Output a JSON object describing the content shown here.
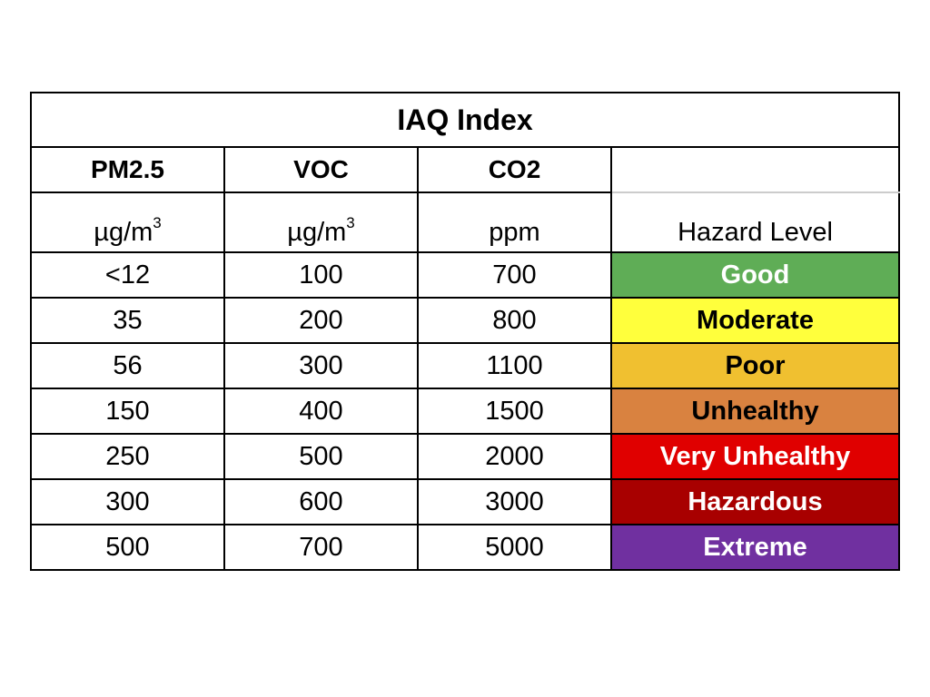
{
  "table": {
    "title": "IAQ Index",
    "columns": [
      {
        "name": "PM2.5",
        "unit": "µg/m",
        "unit_sup": "3"
      },
      {
        "name": "VOC",
        "unit": "µg/m",
        "unit_sup": "3"
      },
      {
        "name": "CO2",
        "unit": "ppm"
      },
      {
        "unit": "Hazard Level"
      }
    ],
    "rows": [
      {
        "cells": [
          "<12",
          100,
          700
        ],
        "level": {
          "label": "Good",
          "fill": "#5fad56",
          "text_color": "#ffffff"
        }
      },
      {
        "cells": [
          35,
          200,
          800
        ],
        "level": {
          "label": "Moderate",
          "fill": "#ffff3c",
          "text_color": "#000000"
        }
      },
      {
        "cells": [
          56,
          300,
          1100
        ],
        "level": {
          "label": "Poor",
          "fill": "#f0c030",
          "text_color": "#000000"
        }
      },
      {
        "cells": [
          150,
          400,
          1500
        ],
        "level": {
          "label": "Unhealthy",
          "fill": "#d98240",
          "text_color": "#000000"
        }
      },
      {
        "cells": [
          250,
          500,
          2000
        ],
        "level": {
          "label": "Very Unhealthy",
          "fill": "#e00000",
          "text_color": "#ffffff"
        }
      },
      {
        "cells": [
          300,
          600,
          3000
        ],
        "level": {
          "label": "Hazardous",
          "fill": "#a80000",
          "text_color": "#ffffff"
        }
      },
      {
        "cells": [
          500,
          700,
          5000
        ],
        "level": {
          "label": "Extreme",
          "fill": "#7030a0",
          "text_color": "#ffffff"
        }
      }
    ]
  }
}
